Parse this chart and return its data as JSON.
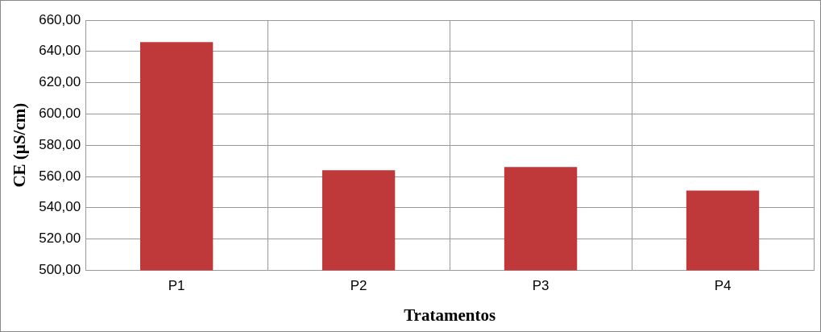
{
  "chart_data": {
    "type": "bar",
    "xlabel": "Tratamentos",
    "ylabel": "CE (µS/cm)",
    "categories": [
      "P1",
      "P2",
      "P3",
      "P4"
    ],
    "values": [
      646,
      564,
      566,
      551
    ],
    "color": "#c0393a",
    "ylim": [
      500,
      660
    ],
    "yticks": [
      {
        "value": 500,
        "label": "500,00"
      },
      {
        "value": 520,
        "label": "520,00"
      },
      {
        "value": 540,
        "label": "540,00"
      },
      {
        "value": 560,
        "label": "560,00"
      },
      {
        "value": 580,
        "label": "580,00"
      },
      {
        "value": 600,
        "label": "600,00"
      },
      {
        "value": 620,
        "label": "620,00"
      },
      {
        "value": 640,
        "label": "640,00"
      },
      {
        "value": 660,
        "label": "660,00"
      }
    ],
    "grid": true,
    "legend": false
  }
}
